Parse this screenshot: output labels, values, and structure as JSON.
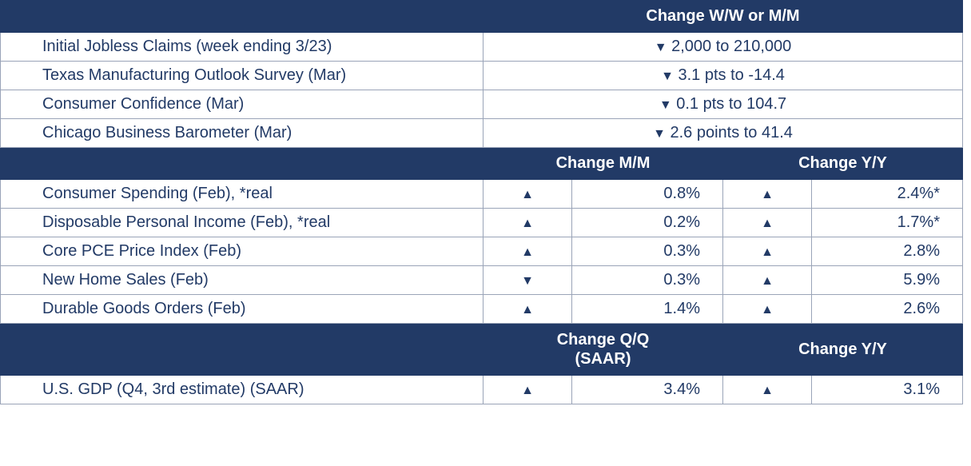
{
  "colors": {
    "header_bg": "#223a66",
    "header_fg": "#ffffff",
    "cell_fg": "#223a66",
    "border": "#9aa4b8",
    "bg": "#ffffff"
  },
  "glyphs": {
    "up": "▲",
    "down": "▼"
  },
  "section1": {
    "header": "Change W/W or M/M",
    "rows": [
      {
        "indicator": "Initial Jobless Claims (week ending 3/23)",
        "dir": "down",
        "text": "2,000 to 210,000"
      },
      {
        "indicator": "Texas Manufacturing Outlook Survey (Mar)",
        "dir": "down",
        "text": "3.1 pts to -14.4"
      },
      {
        "indicator": "Consumer Confidence (Mar)",
        "dir": "down",
        "text": "0.1 pts to 104.7"
      },
      {
        "indicator": "Chicago Business Barometer (Mar)",
        "dir": "down",
        "text": "2.6 points to 41.4"
      }
    ]
  },
  "section2": {
    "header_mm": "Change M/M",
    "header_yy": "Change Y/Y",
    "rows": [
      {
        "indicator": "Consumer Spending (Feb), *real",
        "mm_dir": "up",
        "mm": "0.8%",
        "yy_dir": "up",
        "yy": "2.4%*"
      },
      {
        "indicator": "Disposable Personal Income (Feb), *real",
        "mm_dir": "up",
        "mm": "0.2%",
        "yy_dir": "up",
        "yy": "1.7%*"
      },
      {
        "indicator": "Core PCE Price Index (Feb)",
        "mm_dir": "up",
        "mm": "0.3%",
        "yy_dir": "up",
        "yy": "2.8%"
      },
      {
        "indicator": "New Home Sales (Feb)",
        "mm_dir": "down",
        "mm": "0.3%",
        "yy_dir": "up",
        "yy": "5.9%"
      },
      {
        "indicator": "Durable Goods Orders (Feb)",
        "mm_dir": "up",
        "mm": "1.4%",
        "yy_dir": "up",
        "yy": "2.6%"
      }
    ]
  },
  "section3": {
    "header_qq_line1": "Change Q/Q",
    "header_qq_line2": "(SAAR)",
    "header_yy": "Change Y/Y",
    "rows": [
      {
        "indicator": "U.S. GDP (Q4, 3rd estimate) (SAAR)",
        "qq_dir": "up",
        "qq": "3.4%",
        "yy_dir": "up",
        "yy": "3.1%"
      }
    ]
  }
}
